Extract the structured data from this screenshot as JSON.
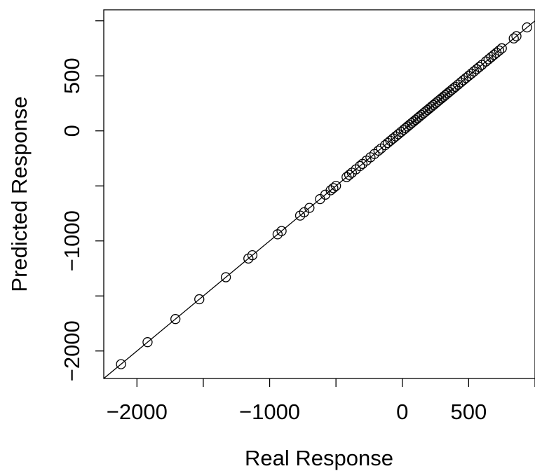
{
  "chart_data": {
    "type": "scatter",
    "xlabel": "Real Response",
    "ylabel": "Predicted Response",
    "xlim": [
      -2250,
      1000
    ],
    "ylim": [
      -2250,
      1100
    ],
    "x_ticks": [
      -2000,
      -1500,
      -1000,
      -500,
      0,
      500,
      1000
    ],
    "x_tick_labels": [
      "−2000",
      "",
      "−1000",
      "",
      "0",
      "500",
      ""
    ],
    "y_ticks": [
      -2000,
      -1500,
      -1000,
      -500,
      0,
      500,
      1000
    ],
    "y_tick_labels": [
      "−2000",
      "",
      "−1000",
      "",
      "0",
      "500",
      ""
    ],
    "reference_line": {
      "slope": 1,
      "intercept": 0
    },
    "grid": false,
    "marker": "open-circle",
    "points": [
      [
        -2120,
        -2120
      ],
      [
        -1920,
        -1920
      ],
      [
        -1710,
        -1710
      ],
      [
        -1530,
        -1530
      ],
      [
        -1330,
        -1330
      ],
      [
        -1160,
        -1160
      ],
      [
        -1130,
        -1130
      ],
      [
        -940,
        -940
      ],
      [
        -910,
        -910
      ],
      [
        -770,
        -770
      ],
      [
        -740,
        -740
      ],
      [
        -700,
        -700
      ],
      [
        -620,
        -620
      ],
      [
        -580,
        -580
      ],
      [
        -540,
        -540
      ],
      [
        -520,
        -520
      ],
      [
        -500,
        -500
      ],
      [
        -420,
        -420
      ],
      [
        -400,
        -400
      ],
      [
        -380,
        -380
      ],
      [
        -350,
        -350
      ],
      [
        -320,
        -320
      ],
      [
        -300,
        -300
      ],
      [
        -270,
        -270
      ],
      [
        -240,
        -240
      ],
      [
        -210,
        -210
      ],
      [
        -180,
        -180
      ],
      [
        -160,
        -160
      ],
      [
        -130,
        -130
      ],
      [
        -110,
        -110
      ],
      [
        -90,
        -90
      ],
      [
        -70,
        -70
      ],
      [
        -50,
        -50
      ],
      [
        -30,
        -30
      ],
      [
        -10,
        -10
      ],
      [
        10,
        10
      ],
      [
        25,
        25
      ],
      [
        40,
        40
      ],
      [
        55,
        55
      ],
      [
        70,
        70
      ],
      [
        85,
        85
      ],
      [
        100,
        100
      ],
      [
        115,
        115
      ],
      [
        130,
        130
      ],
      [
        145,
        145
      ],
      [
        160,
        160
      ],
      [
        175,
        175
      ],
      [
        190,
        190
      ],
      [
        205,
        205
      ],
      [
        220,
        220
      ],
      [
        235,
        235
      ],
      [
        250,
        250
      ],
      [
        265,
        265
      ],
      [
        280,
        280
      ],
      [
        295,
        295
      ],
      [
        310,
        310
      ],
      [
        325,
        325
      ],
      [
        340,
        340
      ],
      [
        355,
        355
      ],
      [
        370,
        370
      ],
      [
        385,
        385
      ],
      [
        400,
        400
      ],
      [
        420,
        420
      ],
      [
        440,
        440
      ],
      [
        460,
        460
      ],
      [
        480,
        480
      ],
      [
        500,
        500
      ],
      [
        520,
        520
      ],
      [
        540,
        540
      ],
      [
        560,
        560
      ],
      [
        580,
        580
      ],
      [
        600,
        600
      ],
      [
        630,
        630
      ],
      [
        650,
        650
      ],
      [
        670,
        670
      ],
      [
        690,
        690
      ],
      [
        710,
        710
      ],
      [
        730,
        730
      ],
      [
        750,
        750
      ],
      [
        840,
        840
      ],
      [
        860,
        860
      ],
      [
        940,
        940
      ]
    ]
  }
}
